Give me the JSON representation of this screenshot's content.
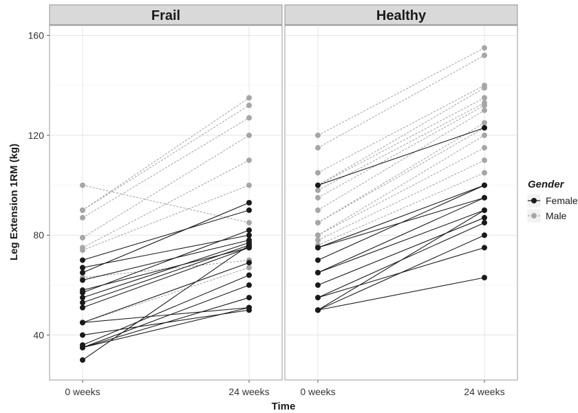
{
  "chart_data": {
    "type": "line",
    "xlabel": "Time",
    "ylabel": "Leg Extension 1RM (kg)",
    "x_categories": [
      "0 weeks",
      "24 weeks"
    ],
    "ylim": [
      22,
      164
    ],
    "y_ticks": [
      40,
      80,
      120,
      160
    ],
    "grid": true,
    "legend": {
      "title": "Gender",
      "position": "right",
      "entries": [
        {
          "name": "Female",
          "color": "#1a1a1a",
          "line": "solid"
        },
        {
          "name": "Male",
          "color": "#a6a6a6",
          "line": "dashed"
        }
      ]
    },
    "panels": [
      {
        "title": "Frail",
        "subjects": [
          {
            "gender": "Male",
            "values": [
              100,
              85
            ]
          },
          {
            "gender": "Male",
            "values": [
              90,
              135
            ]
          },
          {
            "gender": "Male",
            "values": [
              90,
              132
            ]
          },
          {
            "gender": "Male",
            "values": [
              87,
              127
            ]
          },
          {
            "gender": "Male",
            "values": [
              79,
              120
            ]
          },
          {
            "gender": "Male",
            "values": [
              75,
              110
            ]
          },
          {
            "gender": "Male",
            "values": [
              74,
              100
            ]
          },
          {
            "gender": "Male",
            "values": [
              65,
              93
            ]
          },
          {
            "gender": "Male",
            "values": [
              63,
              70
            ]
          },
          {
            "gender": "Male",
            "values": [
              45,
              67
            ]
          },
          {
            "gender": "Female",
            "values": [
              70,
              90
            ]
          },
          {
            "gender": "Female",
            "values": [
              67,
              80
            ]
          },
          {
            "gender": "Female",
            "values": [
              65,
              93
            ]
          },
          {
            "gender": "Female",
            "values": [
              62,
              78
            ]
          },
          {
            "gender": "Female",
            "values": [
              58,
              75
            ]
          },
          {
            "gender": "Female",
            "values": [
              57,
              82
            ]
          },
          {
            "gender": "Female",
            "values": [
              55,
              77
            ]
          },
          {
            "gender": "Female",
            "values": [
              53,
              76
            ]
          },
          {
            "gender": "Female",
            "values": [
              51,
              75
            ]
          },
          {
            "gender": "Female",
            "values": [
              45,
              69
            ]
          },
          {
            "gender": "Female",
            "values": [
              45,
              51
            ]
          },
          {
            "gender": "Female",
            "values": [
              40,
              50
            ]
          },
          {
            "gender": "Female",
            "values": [
              36,
              64
            ]
          },
          {
            "gender": "Female",
            "values": [
              35,
              60
            ]
          },
          {
            "gender": "Female",
            "values": [
              35,
              55
            ]
          },
          {
            "gender": "Female",
            "values": [
              35,
              51
            ]
          },
          {
            "gender": "Female",
            "values": [
              30,
              76
            ]
          }
        ]
      },
      {
        "title": "Healthy",
        "subjects": [
          {
            "gender": "Male",
            "values": [
              120,
              155
            ]
          },
          {
            "gender": "Male",
            "values": [
              115,
              152
            ]
          },
          {
            "gender": "Male",
            "values": [
              105,
              140
            ]
          },
          {
            "gender": "Male",
            "values": [
              100,
              139
            ]
          },
          {
            "gender": "Male",
            "values": [
              100,
              135
            ]
          },
          {
            "gender": "Male",
            "values": [
              98,
              133
            ]
          },
          {
            "gender": "Male",
            "values": [
              95,
              132
            ]
          },
          {
            "gender": "Male",
            "values": [
              90,
              130
            ]
          },
          {
            "gender": "Male",
            "values": [
              85,
              125
            ]
          },
          {
            "gender": "Male",
            "values": [
              85,
              123
            ]
          },
          {
            "gender": "Male",
            "values": [
              80,
              120
            ]
          },
          {
            "gender": "Male",
            "values": [
              80,
              115
            ]
          },
          {
            "gender": "Male",
            "values": [
              78,
              110
            ]
          },
          {
            "gender": "Male",
            "values": [
              76,
              105
            ]
          },
          {
            "gender": "Female",
            "values": [
              100,
              123
            ]
          },
          {
            "gender": "Female",
            "values": [
              75,
              100
            ]
          },
          {
            "gender": "Female",
            "values": [
              75,
              95
            ]
          },
          {
            "gender": "Female",
            "values": [
              70,
              100
            ]
          },
          {
            "gender": "Female",
            "values": [
              65,
              95
            ]
          },
          {
            "gender": "Female",
            "values": [
              65,
              90
            ]
          },
          {
            "gender": "Female",
            "values": [
              60,
              87
            ]
          },
          {
            "gender": "Female",
            "values": [
              55,
              85
            ]
          },
          {
            "gender": "Female",
            "values": [
              55,
              75
            ]
          },
          {
            "gender": "Female",
            "values": [
              50,
              90
            ]
          },
          {
            "gender": "Female",
            "values": [
              50,
              80
            ]
          },
          {
            "gender": "Female",
            "values": [
              50,
              63
            ]
          }
        ]
      }
    ]
  }
}
